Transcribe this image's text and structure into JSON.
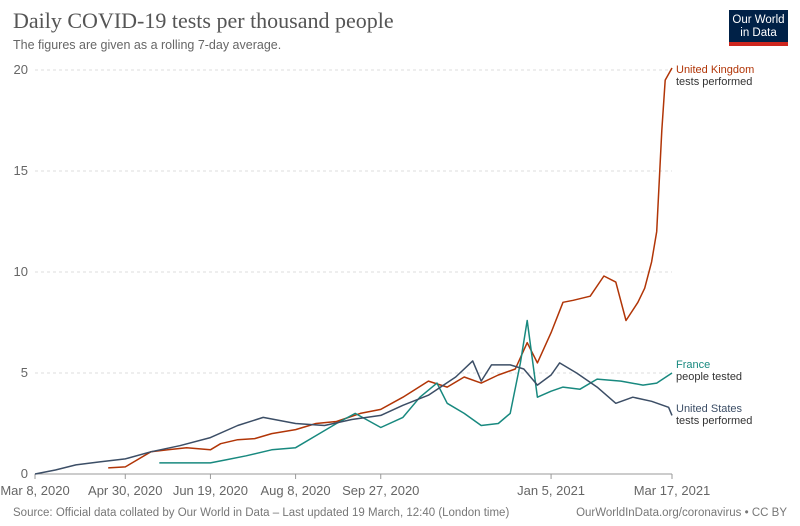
{
  "header": {
    "title": "Daily COVID-19 tests per thousand people",
    "subtitle": "The figures are given as a rolling 7-day average."
  },
  "logo": {
    "line1": "Our World",
    "line2": "in Data",
    "bg": "#002147",
    "accent": "#ce261e"
  },
  "footer": {
    "source": "Source: Official data collated by Our World in Data – Last updated 19 March, 12:40 (London time)",
    "url": "OurWorldInData.org/coronavirus • CC BY"
  },
  "chart_data": {
    "type": "line",
    "grid": true,
    "ylim": [
      0,
      20
    ],
    "xlim": [
      "2020-03-08",
      "2021-03-17"
    ],
    "yticks": [
      "0",
      "5",
      "10",
      "15",
      "20"
    ],
    "xticks": [
      {
        "date": "2020-03-08",
        "label": "Mar 8, 2020"
      },
      {
        "date": "2020-04-30",
        "label": "Apr 30, 2020"
      },
      {
        "date": "2020-06-19",
        "label": "Jun 19, 2020"
      },
      {
        "date": "2020-08-08",
        "label": "Aug 8, 2020"
      },
      {
        "date": "2020-09-27",
        "label": "Sep 27, 2020"
      },
      {
        "date": "2021-01-05",
        "label": "Jan 5, 2021"
      },
      {
        "date": "2021-03-17",
        "label": "Mar 17, 2021"
      }
    ],
    "series": [
      {
        "name": "United Kingdom",
        "note": "tests performed",
        "color": "#b13507",
        "points": [
          [
            "2020-04-20",
            0.3
          ],
          [
            "2020-04-30",
            0.35
          ],
          [
            "2020-05-05",
            0.6
          ],
          [
            "2020-05-15",
            1.1
          ],
          [
            "2020-05-25",
            1.2
          ],
          [
            "2020-06-05",
            1.3
          ],
          [
            "2020-06-19",
            1.2
          ],
          [
            "2020-06-25",
            1.5
          ],
          [
            "2020-07-05",
            1.7
          ],
          [
            "2020-07-15",
            1.75
          ],
          [
            "2020-07-25",
            2.0
          ],
          [
            "2020-08-08",
            2.2
          ],
          [
            "2020-08-20",
            2.5
          ],
          [
            "2020-09-01",
            2.6
          ],
          [
            "2020-09-15",
            3.0
          ],
          [
            "2020-09-27",
            3.2
          ],
          [
            "2020-10-10",
            3.8
          ],
          [
            "2020-10-25",
            4.6
          ],
          [
            "2020-11-05",
            4.3
          ],
          [
            "2020-11-15",
            4.8
          ],
          [
            "2020-11-25",
            4.5
          ],
          [
            "2020-12-05",
            4.9
          ],
          [
            "2020-12-15",
            5.2
          ],
          [
            "2020-12-22",
            6.5
          ],
          [
            "2020-12-28",
            5.5
          ],
          [
            "2021-01-05",
            7.0
          ],
          [
            "2021-01-12",
            8.5
          ],
          [
            "2021-01-18",
            8.6
          ],
          [
            "2021-01-28",
            8.8
          ],
          [
            "2021-02-05",
            9.8
          ],
          [
            "2021-02-12",
            9.5
          ],
          [
            "2021-02-18",
            7.6
          ],
          [
            "2021-02-25",
            8.5
          ],
          [
            "2021-03-01",
            9.2
          ],
          [
            "2021-03-05",
            10.5
          ],
          [
            "2021-03-08",
            12.0
          ],
          [
            "2021-03-11",
            17.0
          ],
          [
            "2021-03-13",
            19.5
          ],
          [
            "2021-03-17",
            20.1
          ]
        ]
      },
      {
        "name": "France",
        "note": "people tested",
        "color": "#18897f",
        "points": [
          [
            "2020-05-20",
            0.55
          ],
          [
            "2020-06-01",
            0.55
          ],
          [
            "2020-06-19",
            0.55
          ],
          [
            "2020-06-28",
            0.7
          ],
          [
            "2020-07-10",
            0.9
          ],
          [
            "2020-07-25",
            1.2
          ],
          [
            "2020-08-08",
            1.3
          ],
          [
            "2020-08-20",
            1.9
          ],
          [
            "2020-09-01",
            2.5
          ],
          [
            "2020-09-12",
            3.0
          ],
          [
            "2020-09-27",
            2.3
          ],
          [
            "2020-10-10",
            2.8
          ],
          [
            "2020-10-20",
            3.8
          ],
          [
            "2020-10-30",
            4.5
          ],
          [
            "2020-11-05",
            3.5
          ],
          [
            "2020-11-15",
            3.0
          ],
          [
            "2020-11-25",
            2.4
          ],
          [
            "2020-12-05",
            2.5
          ],
          [
            "2020-12-12",
            3.0
          ],
          [
            "2020-12-18",
            5.5
          ],
          [
            "2020-12-22",
            7.6
          ],
          [
            "2020-12-28",
            3.8
          ],
          [
            "2021-01-05",
            4.1
          ],
          [
            "2021-01-12",
            4.3
          ],
          [
            "2021-01-22",
            4.2
          ],
          [
            "2021-02-01",
            4.7
          ],
          [
            "2021-02-15",
            4.6
          ],
          [
            "2021-02-28",
            4.4
          ],
          [
            "2021-03-08",
            4.5
          ],
          [
            "2021-03-17",
            5.0
          ]
        ]
      },
      {
        "name": "United States",
        "note": "tests performed",
        "color": "#3c4e66",
        "points": [
          [
            "2020-03-08",
            0.0
          ],
          [
            "2020-03-20",
            0.2
          ],
          [
            "2020-04-01",
            0.45
          ],
          [
            "2020-04-15",
            0.6
          ],
          [
            "2020-04-30",
            0.75
          ],
          [
            "2020-05-15",
            1.1
          ],
          [
            "2020-06-01",
            1.4
          ],
          [
            "2020-06-19",
            1.8
          ],
          [
            "2020-07-05",
            2.4
          ],
          [
            "2020-07-20",
            2.8
          ],
          [
            "2020-08-08",
            2.5
          ],
          [
            "2020-08-25",
            2.4
          ],
          [
            "2020-09-10",
            2.7
          ],
          [
            "2020-09-27",
            2.9
          ],
          [
            "2020-10-10",
            3.4
          ],
          [
            "2020-10-25",
            3.9
          ],
          [
            "2020-11-10",
            4.8
          ],
          [
            "2020-11-20",
            5.6
          ],
          [
            "2020-11-25",
            4.6
          ],
          [
            "2020-12-01",
            5.4
          ],
          [
            "2020-12-12",
            5.4
          ],
          [
            "2020-12-20",
            5.2
          ],
          [
            "2020-12-28",
            4.4
          ],
          [
            "2021-01-05",
            4.9
          ],
          [
            "2021-01-10",
            5.5
          ],
          [
            "2021-01-20",
            5.0
          ],
          [
            "2021-02-01",
            4.3
          ],
          [
            "2021-02-12",
            3.5
          ],
          [
            "2021-02-22",
            3.8
          ],
          [
            "2021-03-05",
            3.6
          ],
          [
            "2021-03-15",
            3.3
          ],
          [
            "2021-03-17",
            2.9
          ]
        ]
      }
    ]
  }
}
